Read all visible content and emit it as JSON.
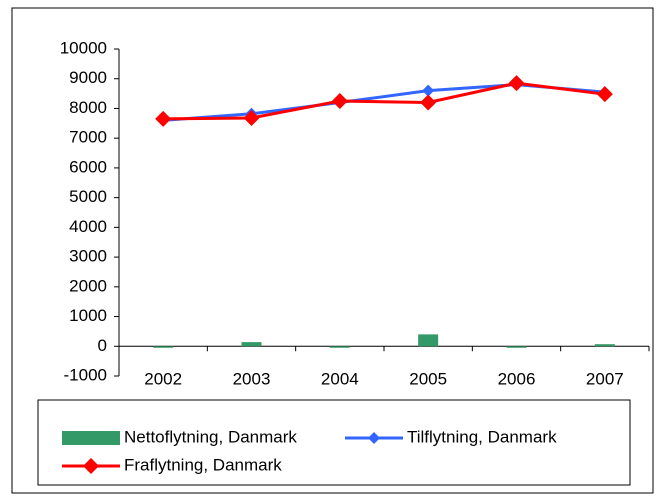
{
  "chart_data": {
    "type": "combo",
    "categories": [
      "2002",
      "2003",
      "2004",
      "2005",
      "2006",
      "2007"
    ],
    "series": [
      {
        "name": "Nettoflytning, Danmark",
        "type": "bar",
        "color": "#339966",
        "values": [
          -50,
          140,
          -50,
          400,
          -50,
          70
        ]
      },
      {
        "name": "Tilflytning, Danmark",
        "type": "line",
        "color": "#3366ff",
        "values": [
          7600,
          7820,
          8200,
          8600,
          8800,
          8550
        ]
      },
      {
        "name": "Fraflytning, Danmark",
        "type": "line",
        "color": "#ff0000",
        "values": [
          7650,
          7680,
          8250,
          8200,
          8850,
          8480
        ]
      }
    ],
    "ylim": [
      -1000,
      10000
    ],
    "yticks": [
      -1000,
      0,
      1000,
      2000,
      3000,
      4000,
      5000,
      6000,
      7000,
      8000,
      9000,
      10000
    ],
    "grid": false,
    "legend": "bottom"
  }
}
